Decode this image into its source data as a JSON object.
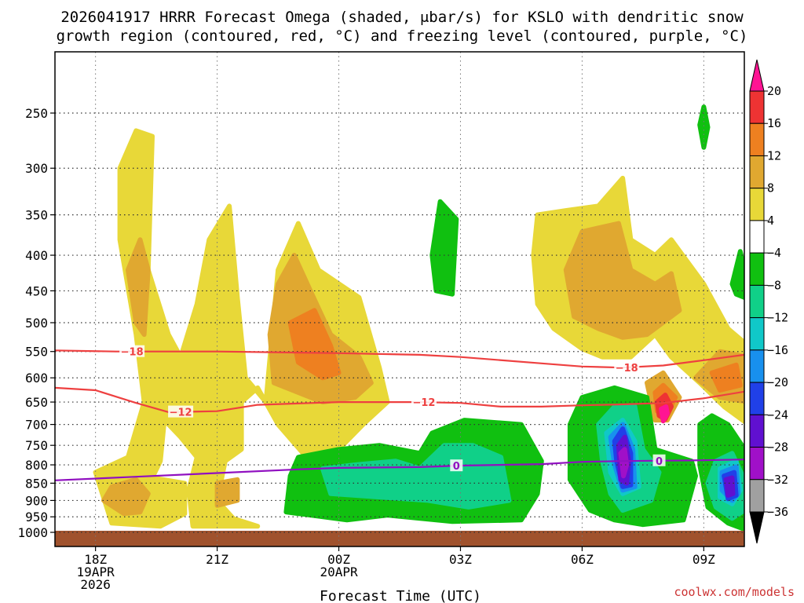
{
  "chart_data": {
    "type": "heatmap",
    "title_line1": "2026041917 HRRR Forecast Omega (shaded, μbar/s) for KSLO with dendritic snow",
    "title_line2": "growth region (contoured, red, °C) and freezing level (contoured, purple, °C)",
    "xlabel": "Forecast Time (UTC)",
    "credit": "coolwx.com/models",
    "x_ticks": [
      {
        "hour": 18,
        "lines": [
          "18Z",
          "19APR",
          "2026"
        ]
      },
      {
        "hour": 21,
        "lines": [
          "21Z"
        ]
      },
      {
        "hour": 24,
        "lines": [
          "00Z",
          "20APR"
        ]
      },
      {
        "hour": 27,
        "lines": [
          "03Z"
        ]
      },
      {
        "hour": 30,
        "lines": [
          "06Z"
        ]
      },
      {
        "hour": 33,
        "lines": [
          "09Z"
        ]
      }
    ],
    "x_range": [
      17,
      34
    ],
    "y_ticks": [
      250,
      300,
      350,
      400,
      450,
      500,
      550,
      600,
      650,
      700,
      750,
      800,
      850,
      900,
      950,
      1000
    ],
    "y_range_hpa": [
      200,
      1030
    ],
    "colorbar": {
      "labels": [
        "20",
        "16",
        "12",
        "8",
        "4",
        "−4",
        "−8",
        "−12",
        "−16",
        "−20",
        "−24",
        "−28",
        "−32",
        "−36"
      ],
      "colors": [
        "#ff1493",
        "#ee3333",
        "#ee8020",
        "#e0a830",
        "#e8d838",
        "#ffffff",
        "#10c010",
        "#10d088",
        "#10c8c8",
        "#1890ee",
        "#2040e8",
        "#6010d0",
        "#a010c8",
        "#a0a0a0",
        "#000000"
      ]
    },
    "shading_colors": {
      "pos4": "#e8d838",
      "pos8": "#e0a830",
      "pos12": "#ee8020",
      "pos16": "#ee3333",
      "pos20": "#ff1493",
      "neg4": "#10c010",
      "neg8": "#10d088",
      "neg12": "#10c8c8",
      "neg16": "#1890ee",
      "neg20": "#2040e8",
      "neg24": "#6010d0",
      "neg28": "#a010c8",
      "ground": "#a0522d"
    },
    "contours": [
      {
        "name": "minus18-contour",
        "label": "−18",
        "color": "#ee4040",
        "points": [
          [
            17,
            548
          ],
          [
            18.5,
            550
          ],
          [
            21,
            550
          ],
          [
            24,
            553
          ],
          [
            26,
            556
          ],
          [
            27,
            560
          ],
          [
            29,
            572
          ],
          [
            30,
            578
          ],
          [
            31,
            580
          ],
          [
            32,
            576
          ],
          [
            33,
            566
          ],
          [
            34,
            556
          ]
        ],
        "label_hours": [
          18.9,
          31.1
        ]
      },
      {
        "name": "minus12-contour",
        "label": "−12",
        "color": "#ee4040",
        "points": [
          [
            17,
            620
          ],
          [
            18,
            625
          ],
          [
            19,
            652
          ],
          [
            19.8,
            672
          ],
          [
            21,
            670
          ],
          [
            22,
            656
          ],
          [
            24,
            650
          ],
          [
            26,
            650
          ],
          [
            27,
            652
          ],
          [
            28,
            660
          ],
          [
            29,
            660
          ],
          [
            30,
            657
          ],
          [
            31,
            655
          ],
          [
            32,
            652
          ],
          [
            33,
            642
          ],
          [
            34,
            628
          ]
        ],
        "label_hours": [
          20.1,
          26.1
        ]
      },
      {
        "name": "zero-contour",
        "label": "0",
        "color": "#9010c0",
        "points": [
          [
            17,
            842
          ],
          [
            19,
            832
          ],
          [
            21,
            822
          ],
          [
            23,
            812
          ],
          [
            24,
            808
          ],
          [
            26,
            806
          ],
          [
            27,
            802
          ],
          [
            29,
            798
          ],
          [
            30,
            792
          ],
          [
            31,
            790
          ],
          [
            32,
            789
          ],
          [
            33,
            788
          ],
          [
            34,
            786
          ]
        ],
        "label_hours": [
          26.9,
          31.9
        ]
      }
    ]
  }
}
